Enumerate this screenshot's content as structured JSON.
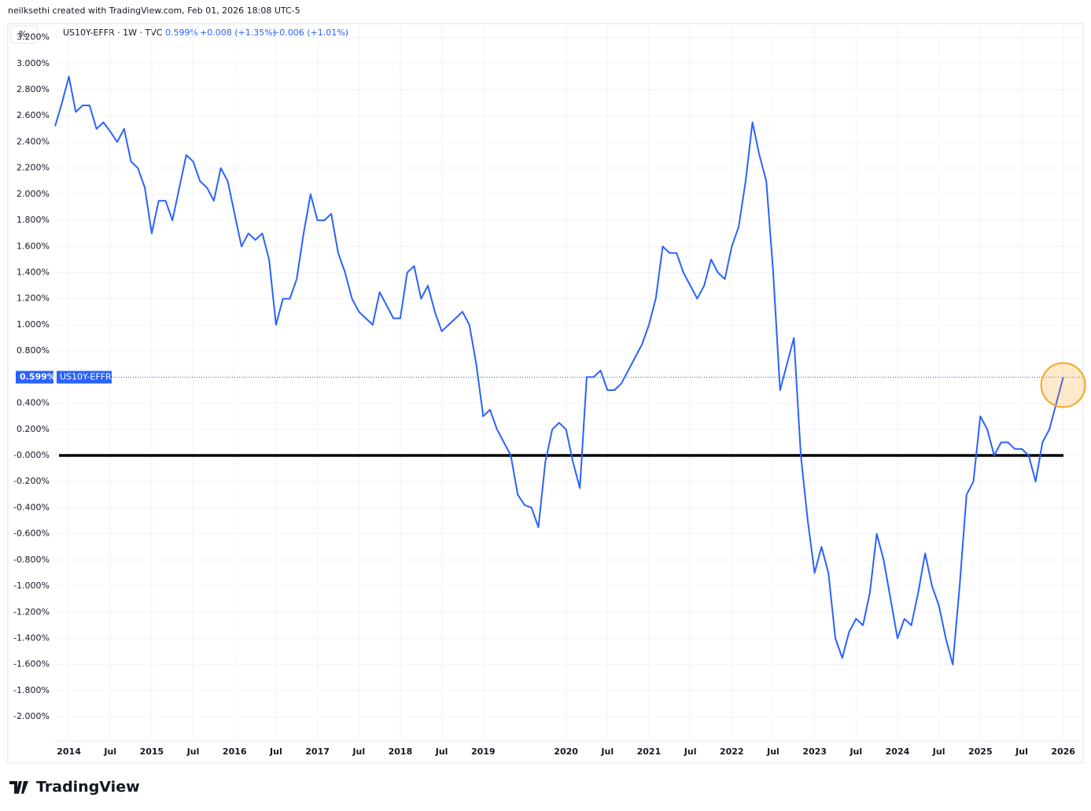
{
  "header": "neilksethi created with TradingView.com, Feb 01, 2026 18:08 UTC-5",
  "logo": "TradingView",
  "chart_data": {
    "type": "line",
    "unit_button": "%",
    "legend": {
      "symbol": "US10Y-EFFR · 1W · TVC",
      "last": "0.599%",
      "change1": "+0.008 (+1.35%)",
      "change2": "+0.006 (+1.01%)"
    },
    "price_label": "0.599%",
    "x": [
      "2013-11",
      "2013-12",
      "2014-01",
      "2014-02",
      "2014-03",
      "2014-04",
      "2014-05",
      "2014-06",
      "2014-07",
      "2014-08",
      "2014-09",
      "2014-10",
      "2014-11",
      "2014-12",
      "2015-01",
      "2015-02",
      "2015-03",
      "2015-04",
      "2015-05",
      "2015-06",
      "2015-07",
      "2015-08",
      "2015-09",
      "2015-10",
      "2015-11",
      "2015-12",
      "2016-01",
      "2016-02",
      "2016-03",
      "2016-04",
      "2016-05",
      "2016-06",
      "2016-07",
      "2016-08",
      "2016-09",
      "2016-10",
      "2016-11",
      "2016-12",
      "2017-01",
      "2017-02",
      "2017-03",
      "2017-04",
      "2017-05",
      "2017-06",
      "2017-07",
      "2017-08",
      "2017-09",
      "2017-10",
      "2017-11",
      "2017-12",
      "2018-01",
      "2018-02",
      "2018-03",
      "2018-04",
      "2018-05",
      "2018-06",
      "2018-07",
      "2018-08",
      "2018-09",
      "2018-10",
      "2018-11",
      "2018-12",
      "2019-01",
      "2019-02",
      "2019-03",
      "2019-04",
      "2019-05",
      "2019-06",
      "2019-07",
      "2019-08",
      "2019-09",
      "2019-10",
      "2019-11",
      "2019-12",
      "2020-01",
      "2020-02",
      "2020-03",
      "2020-04",
      "2020-05",
      "2020-06",
      "2020-07",
      "2020-08",
      "2020-09",
      "2020-10",
      "2020-11",
      "2020-12",
      "2021-01",
      "2021-02",
      "2021-03",
      "2021-04",
      "2021-05",
      "2021-06",
      "2021-07",
      "2021-08",
      "2021-09",
      "2021-10",
      "2021-11",
      "2021-12",
      "2022-01",
      "2022-02",
      "2022-03",
      "2022-04",
      "2022-05",
      "2022-06",
      "2022-07",
      "2022-08",
      "2022-09",
      "2022-10",
      "2022-11",
      "2022-12",
      "2023-01",
      "2023-02",
      "2023-03",
      "2023-04",
      "2023-05",
      "2023-06",
      "2023-07",
      "2023-08",
      "2023-09",
      "2023-10",
      "2023-11",
      "2023-12",
      "2024-01",
      "2024-02",
      "2024-03",
      "2024-04",
      "2024-05",
      "2024-06",
      "2024-07",
      "2024-08",
      "2024-09",
      "2024-10",
      "2024-11",
      "2024-12",
      "2025-01",
      "2025-02",
      "2025-03",
      "2025-04",
      "2025-05",
      "2025-06",
      "2025-07",
      "2025-08",
      "2025-09",
      "2025-10",
      "2025-11",
      "2025-12",
      "2026-01"
    ],
    "series": [
      {
        "name": "US10Y-EFFR",
        "color": "#2962ff",
        "values": [
          2.52,
          2.7,
          2.9,
          2.63,
          2.68,
          2.68,
          2.5,
          2.55,
          2.48,
          2.4,
          2.5,
          2.25,
          2.2,
          2.05,
          1.7,
          1.95,
          1.95,
          1.8,
          2.05,
          2.3,
          2.25,
          2.1,
          2.05,
          1.95,
          2.2,
          2.1,
          1.85,
          1.6,
          1.7,
          1.65,
          1.7,
          1.5,
          1.0,
          1.2,
          1.2,
          1.35,
          1.7,
          2.0,
          1.8,
          1.8,
          1.85,
          1.55,
          1.4,
          1.2,
          1.1,
          1.05,
          1.0,
          1.25,
          1.15,
          1.05,
          1.05,
          1.4,
          1.45,
          1.2,
          1.3,
          1.1,
          0.95,
          1.0,
          1.05,
          1.1,
          1.0,
          0.7,
          0.3,
          0.35,
          0.2,
          0.1,
          0.0,
          -0.3,
          -0.38,
          -0.4,
          -0.55,
          -0.05,
          0.2,
          0.25,
          0.2,
          -0.05,
          -0.25,
          0.6,
          0.6,
          0.65,
          0.5,
          0.5,
          0.55,
          0.65,
          0.75,
          0.85,
          1.0,
          1.2,
          1.6,
          1.55,
          1.55,
          1.4,
          1.3,
          1.2,
          1.3,
          1.5,
          1.4,
          1.35,
          1.6,
          1.75,
          2.1,
          2.55,
          2.3,
          2.1,
          1.4,
          0.5,
          0.7,
          0.9,
          0.0,
          -0.5,
          -0.9,
          -0.7,
          -0.9,
          -1.4,
          -1.55,
          -1.35,
          -1.25,
          -1.3,
          -1.05,
          -0.6,
          -0.8,
          -1.1,
          -1.4,
          -1.25,
          -1.3,
          -1.05,
          -0.75,
          -1.0,
          -1.15,
          -1.4,
          -1.6,
          -1.0,
          -0.3,
          -0.2,
          0.3,
          0.2,
          0.0,
          0.1,
          0.1,
          0.05,
          0.05,
          0.0,
          -0.2,
          0.1,
          0.2,
          0.4,
          0.599
        ]
      }
    ],
    "hline": {
      "value": 0,
      "color": "#000000"
    },
    "xlim": [
      "2013-11",
      "2026-04"
    ],
    "xticks": [
      {
        "value": "2014-01",
        "label": "2014"
      },
      {
        "value": "2014-07",
        "label": "Jul"
      },
      {
        "value": "2015-01",
        "label": "2015"
      },
      {
        "value": "2015-07",
        "label": "Jul"
      },
      {
        "value": "2016-01",
        "label": "2016"
      },
      {
        "value": "2016-07",
        "label": "Jul"
      },
      {
        "value": "2017-01",
        "label": "2017"
      },
      {
        "value": "2017-07",
        "label": "Jul"
      },
      {
        "value": "2018-01",
        "label": "2018"
      },
      {
        "value": "2018-07",
        "label": "Jul"
      },
      {
        "value": "2019-01",
        "label": "2019"
      },
      {
        "value": "2020-01",
        "label": "2020"
      },
      {
        "value": "2020-07",
        "label": "Jul"
      },
      {
        "value": "2021-01",
        "label": "2021"
      },
      {
        "value": "2021-07",
        "label": "Jul"
      },
      {
        "value": "2022-01",
        "label": "2022"
      },
      {
        "value": "2022-07",
        "label": "Jul"
      },
      {
        "value": "2023-01",
        "label": "2023"
      },
      {
        "value": "2023-07",
        "label": "Jul"
      },
      {
        "value": "2024-01",
        "label": "2024"
      },
      {
        "value": "2024-07",
        "label": "Jul"
      },
      {
        "value": "2025-01",
        "label": "2025"
      },
      {
        "value": "2025-07",
        "label": "Jul"
      },
      {
        "value": "2026-01",
        "label": "2026"
      }
    ],
    "ylim": [
      -2.18,
      3.3
    ],
    "yticks": [
      {
        "value": 3.2,
        "label": "3.200%"
      },
      {
        "value": 3.0,
        "label": "3.000%"
      },
      {
        "value": 2.8,
        "label": "2.800%"
      },
      {
        "value": 2.6,
        "label": "2.600%"
      },
      {
        "value": 2.4,
        "label": "2.400%"
      },
      {
        "value": 2.2,
        "label": "2.200%"
      },
      {
        "value": 2.0,
        "label": "2.000%"
      },
      {
        "value": 1.8,
        "label": "1.800%"
      },
      {
        "value": 1.6,
        "label": "1.600%"
      },
      {
        "value": 1.4,
        "label": "1.400%"
      },
      {
        "value": 1.2,
        "label": "1.200%"
      },
      {
        "value": 1.0,
        "label": "1.000%"
      },
      {
        "value": 0.8,
        "label": "0.800%"
      },
      {
        "value": 0.4,
        "label": "0.400%"
      },
      {
        "value": 0.2,
        "label": "0.200%"
      },
      {
        "value": 0,
        "label": "-0.000%"
      },
      {
        "value": -0.2,
        "label": "-0.200%"
      },
      {
        "value": -0.4,
        "label": "-0.400%"
      },
      {
        "value": -0.6,
        "label": "-0.600%"
      },
      {
        "value": -0.8,
        "label": "-0.800%"
      },
      {
        "value": -1.0,
        "label": "-1.000%"
      },
      {
        "value": -1.2,
        "label": "-1.200%"
      },
      {
        "value": -1.4,
        "label": "-1.400%"
      },
      {
        "value": -1.6,
        "label": "-1.600%"
      },
      {
        "value": -1.8,
        "label": "-1.800%"
      },
      {
        "value": -2.0,
        "label": "-2.000%"
      }
    ],
    "grid": true
  }
}
